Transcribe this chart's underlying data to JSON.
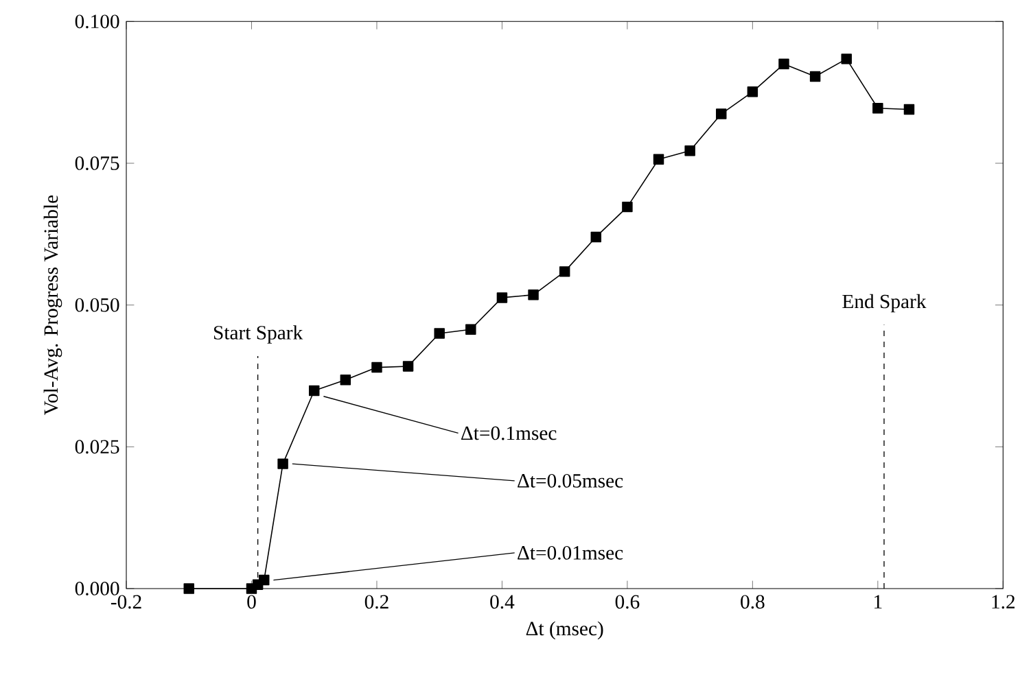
{
  "chart_data": {
    "type": "line",
    "xlabel": "Δt (msec)",
    "ylabel": "Vol-Avg. Progress Variable",
    "x": [
      -0.1,
      0,
      0.01,
      0.02,
      0.05,
      0.1,
      0.15,
      0.2,
      0.25,
      0.3,
      0.35,
      0.4,
      0.45,
      0.5,
      0.55,
      0.6,
      0.65,
      0.7,
      0.75,
      0.8,
      0.85,
      0.9,
      0.95,
      1.0,
      1.05
    ],
    "series": [
      {
        "color": "#000000",
        "values": [
          0,
          0,
          0.0007,
          0.0015,
          0.022,
          0.0349,
          0.0368,
          0.039,
          0.0392,
          0.045,
          0.0457,
          0.0513,
          0.0518,
          0.0559,
          0.062,
          0.0673,
          0.0757,
          0.0772,
          0.0837,
          0.0876,
          0.0925,
          0.0903,
          0.0934,
          0.0847,
          0.0845
        ]
      }
    ],
    "xlim": [
      -0.2,
      1.2
    ],
    "xticks": [
      -0.2,
      0,
      0.2,
      0.4,
      0.6,
      0.8,
      1,
      1.2
    ],
    "ylim": [
      0,
      0.1
    ],
    "yticks": [
      {
        "value": 0,
        "label": "0.000"
      },
      {
        "value": 0.025,
        "label": "0.025"
      },
      {
        "value": 0.05,
        "label": "0.050"
      },
      {
        "value": 0.075,
        "label": "0.075"
      },
      {
        "value": 0.1,
        "label": "0.100"
      }
    ],
    "marker": "square",
    "line_style": "solid",
    "grid": false,
    "ref_lines": [
      {
        "axis": "x",
        "value": 0.01,
        "label": "Start Spark",
        "line_style": "dashed"
      },
      {
        "axis": "x",
        "value": 1.01,
        "label": "End Spark",
        "line_style": "dashed"
      }
    ],
    "annotations": [
      {
        "text": "Δt=0.1msec",
        "x": 0.1,
        "y": 0.0349
      },
      {
        "text": "Δt=0.05msec",
        "x": 0.05,
        "y": 0.022
      },
      {
        "text": "Δt=0.01msec",
        "x": 0.02,
        "y": 0.0015
      }
    ]
  }
}
